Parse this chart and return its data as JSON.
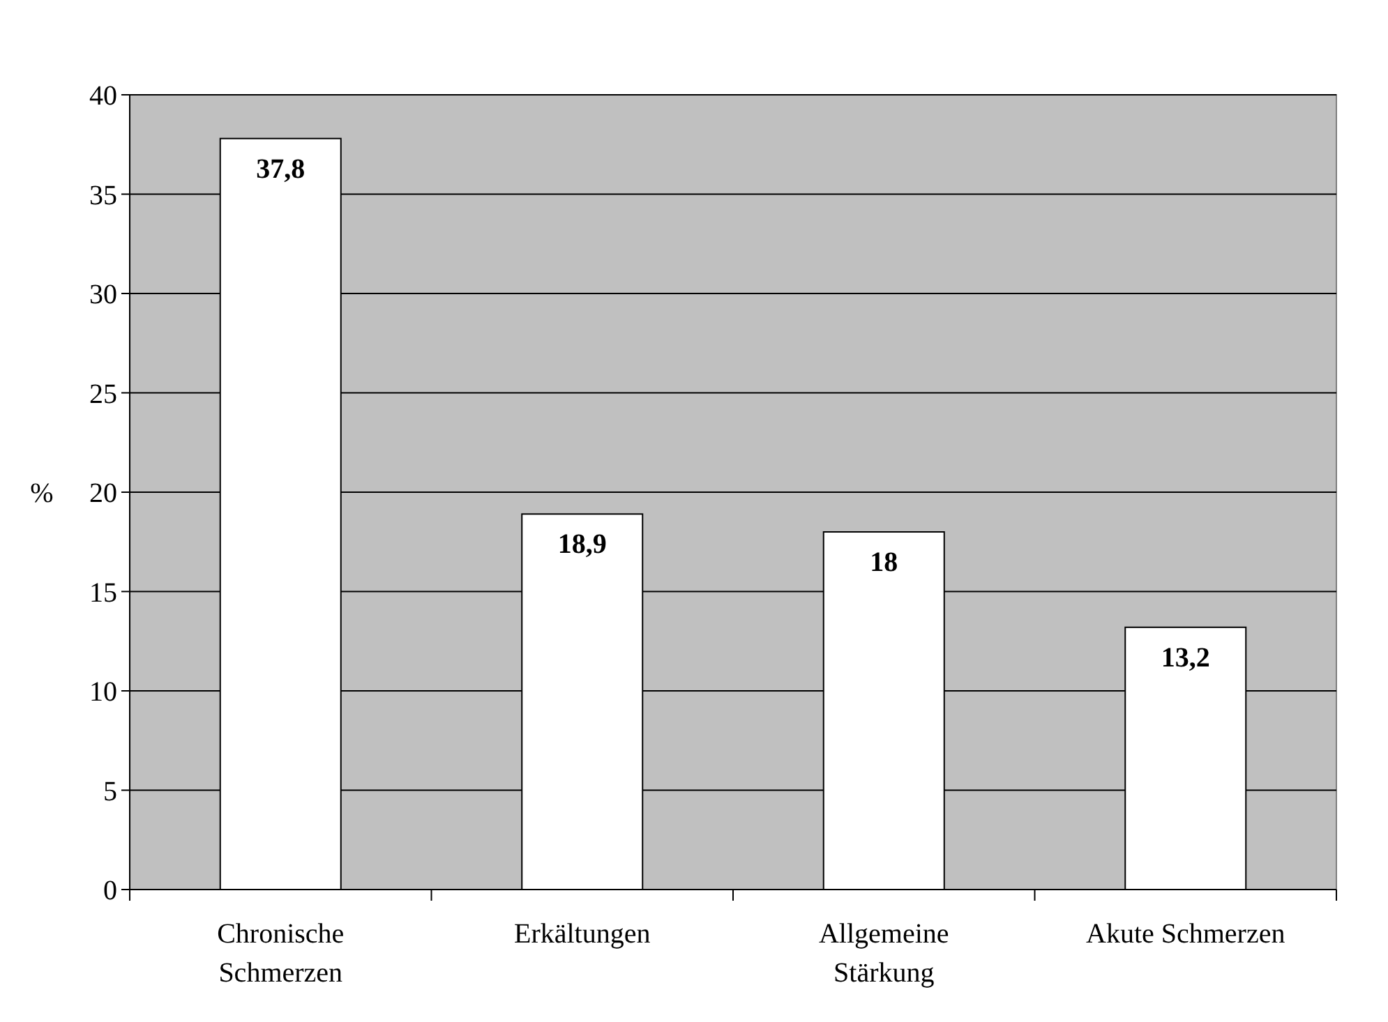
{
  "chart_data": {
    "type": "bar",
    "categories": [
      "Chronische Schmerzen",
      "Erkältungen",
      "Allgemeine Stärkung",
      "Akute Schmerzen"
    ],
    "values": [
      37.8,
      18.9,
      18,
      13.2
    ],
    "value_labels": [
      "37,8",
      "18,9",
      "18",
      "13,2"
    ],
    "color": "#ffffff",
    "ylabel": "%",
    "ylim": [
      0,
      40
    ],
    "yticks": [
      0,
      5,
      10,
      15,
      20,
      25,
      30,
      35,
      40
    ],
    "grid": "y"
  }
}
